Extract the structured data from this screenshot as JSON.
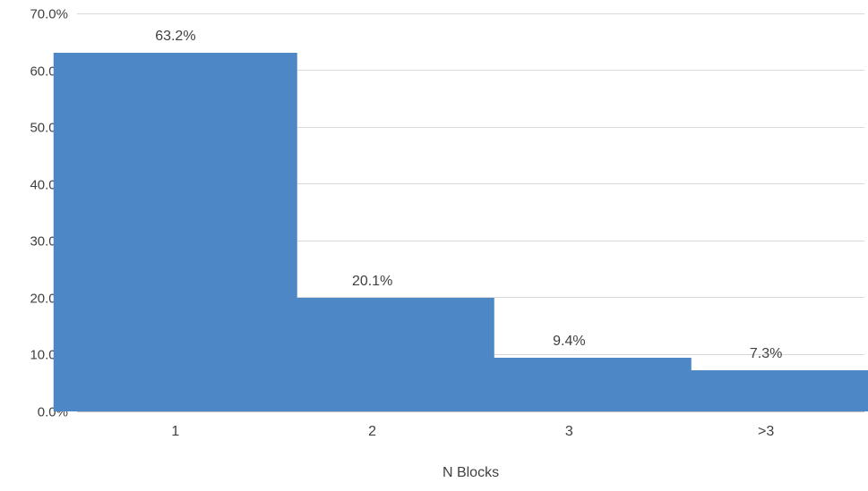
{
  "chart_data": {
    "type": "bar",
    "categories": [
      "1",
      "2",
      "3",
      ">3"
    ],
    "values": [
      63.2,
      20.1,
      9.4,
      7.3
    ],
    "value_labels": [
      "63.2%",
      "20.1%",
      "9.4%",
      "7.3%"
    ],
    "title": "",
    "xlabel": "N Blocks",
    "ylabel": "",
    "ylim": [
      0,
      70
    ],
    "yticks": [
      0,
      10,
      20,
      30,
      40,
      50,
      60,
      70
    ],
    "ytick_labels": [
      "0.0%",
      "10.0%",
      "20.0%",
      "30.0%",
      "40.0%",
      "50.0%",
      "60.0%",
      "70.0%"
    ],
    "grid": true,
    "legend": false,
    "bar_color": "#4E87C6",
    "gridline_color": "#D9D9D9",
    "axis_line_color": "#BFBFBF",
    "text_color": "#404040"
  }
}
